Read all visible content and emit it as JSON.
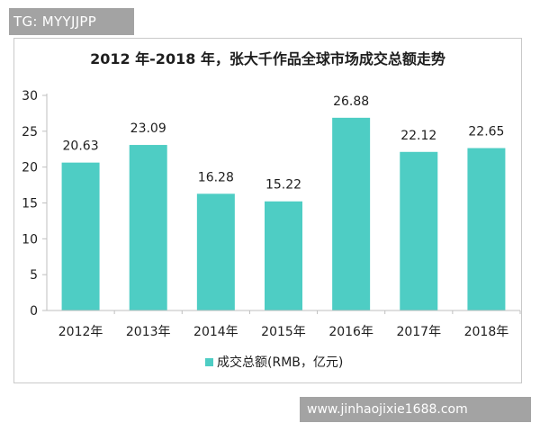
{
  "watermark_top": "TG: MYYJJPP",
  "watermark_bottom": "www.jinhaojixie1688.com",
  "colors": {
    "bar": "#4ecdc4",
    "axis": "#bfbfbf",
    "text": "#1e1e1e"
  },
  "chart_data": {
    "type": "bar",
    "title": "2012 年-2018 年，张大千作品全球市场成交总额走势",
    "categories": [
      "2012年",
      "2013年",
      "2014年",
      "2015年",
      "2016年",
      "2017年",
      "2018年"
    ],
    "series": [
      {
        "name": "成交总额(RMB，亿元)",
        "values": [
          20.63,
          23.09,
          16.28,
          15.22,
          26.88,
          22.12,
          22.65
        ]
      }
    ],
    "value_labels": [
      "20.63",
      "23.09",
      "16.28",
      "15.22",
      "26.88",
      "22.12",
      "22.65"
    ],
    "ylim": [
      0,
      30
    ],
    "yticks": [
      0,
      5,
      10,
      15,
      20,
      25,
      30
    ],
    "xlabel": "",
    "ylabel": "",
    "grid": false,
    "legend_position": "bottom-center"
  }
}
